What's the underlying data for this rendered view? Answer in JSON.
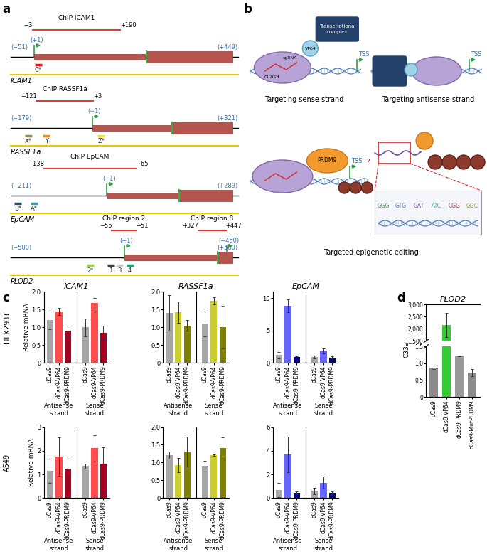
{
  "panel_labels": [
    "a",
    "b",
    "c",
    "d"
  ],
  "gene_maps": [
    {
      "name": "ICAM1",
      "start": -51,
      "end": 449,
      "start_label": "(−51)",
      "end_label": "(+449)",
      "tss": 1,
      "tss_label": "(+1)",
      "chip": [
        {
          "label": "ChIP ICAM1",
          "from": -3,
          "to": 190,
          "from_label": "−3",
          "to_label": "+190"
        }
      ],
      "guides": [
        {
          "label": "C*",
          "position": 10,
          "color": "#e3211c"
        }
      ]
    },
    {
      "name": "RASSF1a",
      "start": -179,
      "end": 321,
      "start_label": "(−179)",
      "end_label": "(+321)",
      "tss": 1,
      "tss_label": "(+1)",
      "chip": [
        {
          "label": "ChIP RASSF1a",
          "from": -121,
          "to": 3,
          "from_label": "−121",
          "to_label": "+3"
        }
      ],
      "guides": [
        {
          "label": "X*",
          "position": -140,
          "color": "#8c8c5a"
        },
        {
          "label": "Y",
          "position": -100,
          "color": "#f08c1e"
        },
        {
          "label": "Z*",
          "position": 20,
          "color": "#f5e03c"
        }
      ]
    },
    {
      "name": "EpCAM",
      "start": -211,
      "end": 289,
      "start_label": "(−211)",
      "end_label": "(+289)",
      "tss": 1,
      "tss_label": "(+1)",
      "chip": [
        {
          "label": "ChIP EpCAM",
          "from": -138,
          "to": 65,
          "from_label": "−138",
          "to_label": "+65"
        }
      ],
      "guides": [
        {
          "label": "B*",
          "position": -195,
          "color": "#1f4e5f"
        },
        {
          "label": "A*",
          "position": -160,
          "color": "#2fa3b5"
        }
      ]
    },
    {
      "name": "PLOD2",
      "start": -500,
      "end": 500,
      "start_label": "(−500)",
      "end_label": "(+500)",
      "tss": 1,
      "tss_label": "(+1)",
      "second_tss": {
        "position": 450,
        "label": "(+450)"
      },
      "chip": [
        {
          "label": "ChIP region 2",
          "from": -55,
          "to": 51,
          "from_label": "−55",
          "to_label": "+51"
        },
        {
          "label": "ChIP region 8",
          "from": 327,
          "to": 447,
          "from_label": "+327",
          "to_label": "+447"
        }
      ],
      "guides": [
        {
          "label": "2*",
          "position": -150,
          "color": "#9bd44a"
        },
        {
          "label": "1",
          "position": -60,
          "color": "#3c3c3c"
        },
        {
          "label": "3",
          "position": -20,
          "color": "#c8c8c8"
        },
        {
          "label": "4",
          "position": 25,
          "color": "#1fa36b"
        }
      ]
    }
  ],
  "schematic": {
    "sense": {
      "caption": "Targeting sense strand",
      "protein": "dCas9",
      "guide": "sgRNA",
      "activator": "VP64",
      "complex": "Transcriptional\ncomplex",
      "tss": "TSS"
    },
    "antisense": {
      "caption": "Targeting antisense strand",
      "tss": "TSS"
    },
    "epigenetic": {
      "caption": "Targeted epigenetic editing",
      "effector": "PRDM9",
      "tss": "TSS",
      "effect": "?",
      "codons": [
        "GGG",
        "GTG",
        "GAT",
        "ATC",
        "CGG",
        "GGC"
      ]
    }
  },
  "row_labels": [
    "HEK293T",
    "A549"
  ],
  "chart_data": [
    {
      "type": "bar",
      "title": "ICAM1",
      "ylabel": "Relative mRNA",
      "categories": [
        "dCas9",
        "dCas9-VP64",
        "dCas9-PRDM9",
        "dCas9",
        "dCas9-VP64",
        "dCas9-PRDM9"
      ],
      "groups": [
        "Antisense\nstrand",
        "Sense\nstrand"
      ],
      "values": [
        1.2,
        1.45,
        0.9,
        1.0,
        1.68,
        0.85
      ],
      "errors": [
        0.25,
        0.1,
        0.15,
        0.25,
        0.15,
        0.2
      ],
      "colors": [
        "#a6a6a6",
        "#ff4d4d",
        "#a50021",
        "#a6a6a6",
        "#ff4d4d",
        "#a50021"
      ],
      "ylim": [
        0,
        2
      ],
      "yticks": [
        0,
        0.5,
        {
          "value": 1,
          "label": "1.0"
        },
        1.5,
        {
          "value": 2,
          "label": "2.0"
        }
      ]
    },
    {
      "type": "bar",
      "title": "RASSF1a",
      "categories": [
        "dCas9",
        "dCas9-VP64",
        "dCas9-PRDM9",
        "dCas9",
        "dCas9-VP64",
        "dCas9-PRDM9"
      ],
      "groups": [
        "Antisense\nstrand",
        "Sense\nstrand"
      ],
      "values": [
        1.4,
        1.42,
        1.05,
        1.1,
        1.75,
        1.0
      ],
      "errors": [
        0.5,
        0.3,
        0.15,
        0.35,
        0.1,
        0.6
      ],
      "colors": [
        "#a6a6a6",
        "#cccc33",
        "#7f7f00",
        "#a6a6a6",
        "#cccc33",
        "#7f7f00"
      ],
      "ylim": [
        0,
        2
      ],
      "yticks": [
        0,
        0.5,
        {
          "value": 1,
          "label": "1.0"
        },
        1.5,
        {
          "value": 2,
          "label": "2.0"
        }
      ]
    },
    {
      "type": "bar",
      "title": "EpCAM",
      "categories": [
        "dCas9",
        "dCas9-VP64",
        "dCas9-PRDM9",
        "dCas9",
        "dCas9-VP64",
        "dCas9-PRDM9"
      ],
      "groups": [
        "Antisense\nstrand",
        "Sense\nstrand"
      ],
      "values": [
        1.2,
        8.8,
        0.9,
        0.9,
        1.8,
        0.8
      ],
      "errors": [
        0.5,
        1.0,
        0.15,
        0.2,
        0.4,
        0.15
      ],
      "colors": [
        "#a6a6a6",
        "#6666ff",
        "#000080",
        "#a6a6a6",
        "#6666ff",
        "#000080"
      ],
      "ylim": [
        0,
        11
      ],
      "yticks": [
        0,
        5,
        10
      ]
    },
    {
      "type": "bar",
      "ylabel": "Relative mRNA",
      "categories": [
        "dCas9",
        "dCas9-VP64",
        "dCas9-PRDM9",
        "dCas9",
        "dCas9-VP64",
        "dCas9-PRDM9"
      ],
      "groups": [
        "Antisense\nstrand",
        "Sense\nstrand"
      ],
      "values": [
        1.15,
        1.75,
        1.25,
        1.35,
        2.1,
        1.45
      ],
      "errors": [
        0.5,
        0.8,
        0.5,
        0.1,
        0.55,
        0.7
      ],
      "colors": [
        "#a6a6a6",
        "#ff4d4d",
        "#a50021",
        "#a6a6a6",
        "#ff4d4d",
        "#a50021"
      ],
      "ylim": [
        0,
        3
      ],
      "yticks": [
        0,
        1,
        2,
        3
      ]
    },
    {
      "type": "bar",
      "categories": [
        "dCas9",
        "dCas9-VP64",
        "dCas9-PRDM9",
        "dCas9",
        "dCas9-VP64",
        "dCas9-PRDM9"
      ],
      "groups": [
        "Antisense\nstrand",
        "Sense\nstrand"
      ],
      "values": [
        1.2,
        0.93,
        1.3,
        0.9,
        1.2,
        1.4
      ],
      "errors": [
        0.1,
        0.2,
        0.42,
        0.15,
        0.02,
        0.3
      ],
      "colors": [
        "#a6a6a6",
        "#cccc33",
        "#7f7f00",
        "#a6a6a6",
        "#cccc33",
        "#7f7f00"
      ],
      "ylim": [
        0,
        2
      ],
      "yticks": [
        0,
        0.5,
        {
          "value": 1,
          "label": "1.0"
        },
        1.5,
        {
          "value": 2,
          "label": "2.0"
        }
      ]
    },
    {
      "type": "bar",
      "categories": [
        "dCas9",
        "dCas9-VP64",
        "dCas9-PRDM9",
        "dCas9",
        "dCas9-VP64",
        "dCas9-PRDM9"
      ],
      "groups": [
        "Antisense\nstrand",
        "Sense\nstrand"
      ],
      "values": [
        0.7,
        3.7,
        0.45,
        0.6,
        1.3,
        0.45
      ],
      "errors": [
        0.6,
        1.5,
        0.1,
        0.25,
        0.5,
        0.1
      ],
      "colors": [
        "#a6a6a6",
        "#6666ff",
        "#000080",
        "#a6a6a6",
        "#6666ff",
        "#000080"
      ],
      "ylim": [
        0,
        6
      ],
      "yticks": [
        0,
        2,
        4,
        6
      ]
    },
    {
      "type": "bar",
      "title": "PLOD2",
      "ylabel": "C33a",
      "categories": [
        "dCas9",
        "dCas9-VP64",
        "dCas9-PRDM9",
        "dCas9-MutPRDM9"
      ],
      "values": [
        0.88,
        2150,
        1.2,
        0.72
      ],
      "errors": [
        0.06,
        500,
        0,
        0.1
      ],
      "colors": [
        "#8c8c8c",
        "#33cc33",
        "#999999",
        "#8c8c8c"
      ],
      "segments": [
        {
          "ylim": [
            0,
            1.5
          ],
          "yticks": [
            0,
            0.5,
            {
              "value": 1,
              "label": "1.0"
            },
            1.5
          ]
        },
        {
          "ylim": [
            1500,
            3000
          ],
          "yticks": [
            {
              "value": 1500,
              "label": "1,500"
            },
            {
              "value": 2000,
              "label": "2,000"
            },
            {
              "value": 2500,
              "label": "2,500"
            },
            {
              "value": 3000,
              "label": "3,000"
            }
          ]
        }
      ]
    }
  ]
}
